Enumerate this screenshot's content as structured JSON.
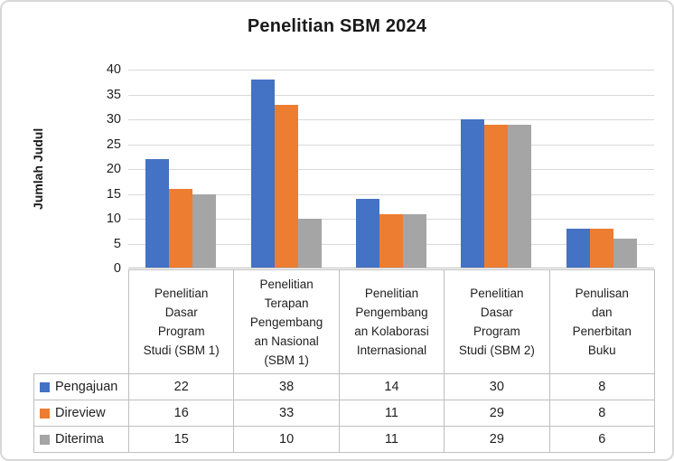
{
  "panel": {
    "background": "#ffffff",
    "border_color": "#D8D8D8"
  },
  "chart_data": {
    "type": "bar",
    "title": "Penelitian SBM 2024",
    "xlabel": "",
    "ylabel": "Jumlah Judul",
    "ylim": [
      0,
      40
    ],
    "yticks": [
      0,
      5,
      10,
      15,
      20,
      25,
      30,
      35,
      40
    ],
    "grid": true,
    "legend_position": "table-left",
    "categories": [
      "Penelitian Dasar Program Studi (SBM 1)",
      "Penelitian Terapan Pengembangan Nasional (SBM 1)",
      "Penelitian Pengembangan Kolaborasi Internasional",
      "Penelitian Dasar Program Studi (SBM 2)",
      "Penulisan dan Penerbitan Buku"
    ],
    "category_label_lines": [
      [
        "Penelitian",
        "Dasar",
        "Program",
        "Studi (SBM 1)"
      ],
      [
        "Penelitian",
        "Terapan",
        "Pengembang",
        "an Nasional",
        "(SBM 1)"
      ],
      [
        "Penelitian",
        "Pengembang",
        "an Kolaborasi",
        "Internasional"
      ],
      [
        "Penelitian",
        "Dasar",
        "Program",
        "Studi (SBM 2)"
      ],
      [
        "Penulisan",
        "dan",
        "Penerbitan",
        "Buku"
      ]
    ],
    "series": [
      {
        "name": "Pengajuan",
        "color": "#4472C4",
        "values": [
          22,
          38,
          14,
          30,
          8
        ]
      },
      {
        "name": "Direview",
        "color": "#ED7D31",
        "values": [
          16,
          33,
          11,
          29,
          8
        ]
      },
      {
        "name": "Diterima",
        "color": "#A5A5A5",
        "values": [
          15,
          10,
          11,
          29,
          6
        ]
      }
    ],
    "colors": {
      "gridline": "#D9D9D9",
      "axis_line": "#BFBFBF",
      "table_border": "#BFBFBF",
      "text": "#1f1f1f"
    }
  }
}
